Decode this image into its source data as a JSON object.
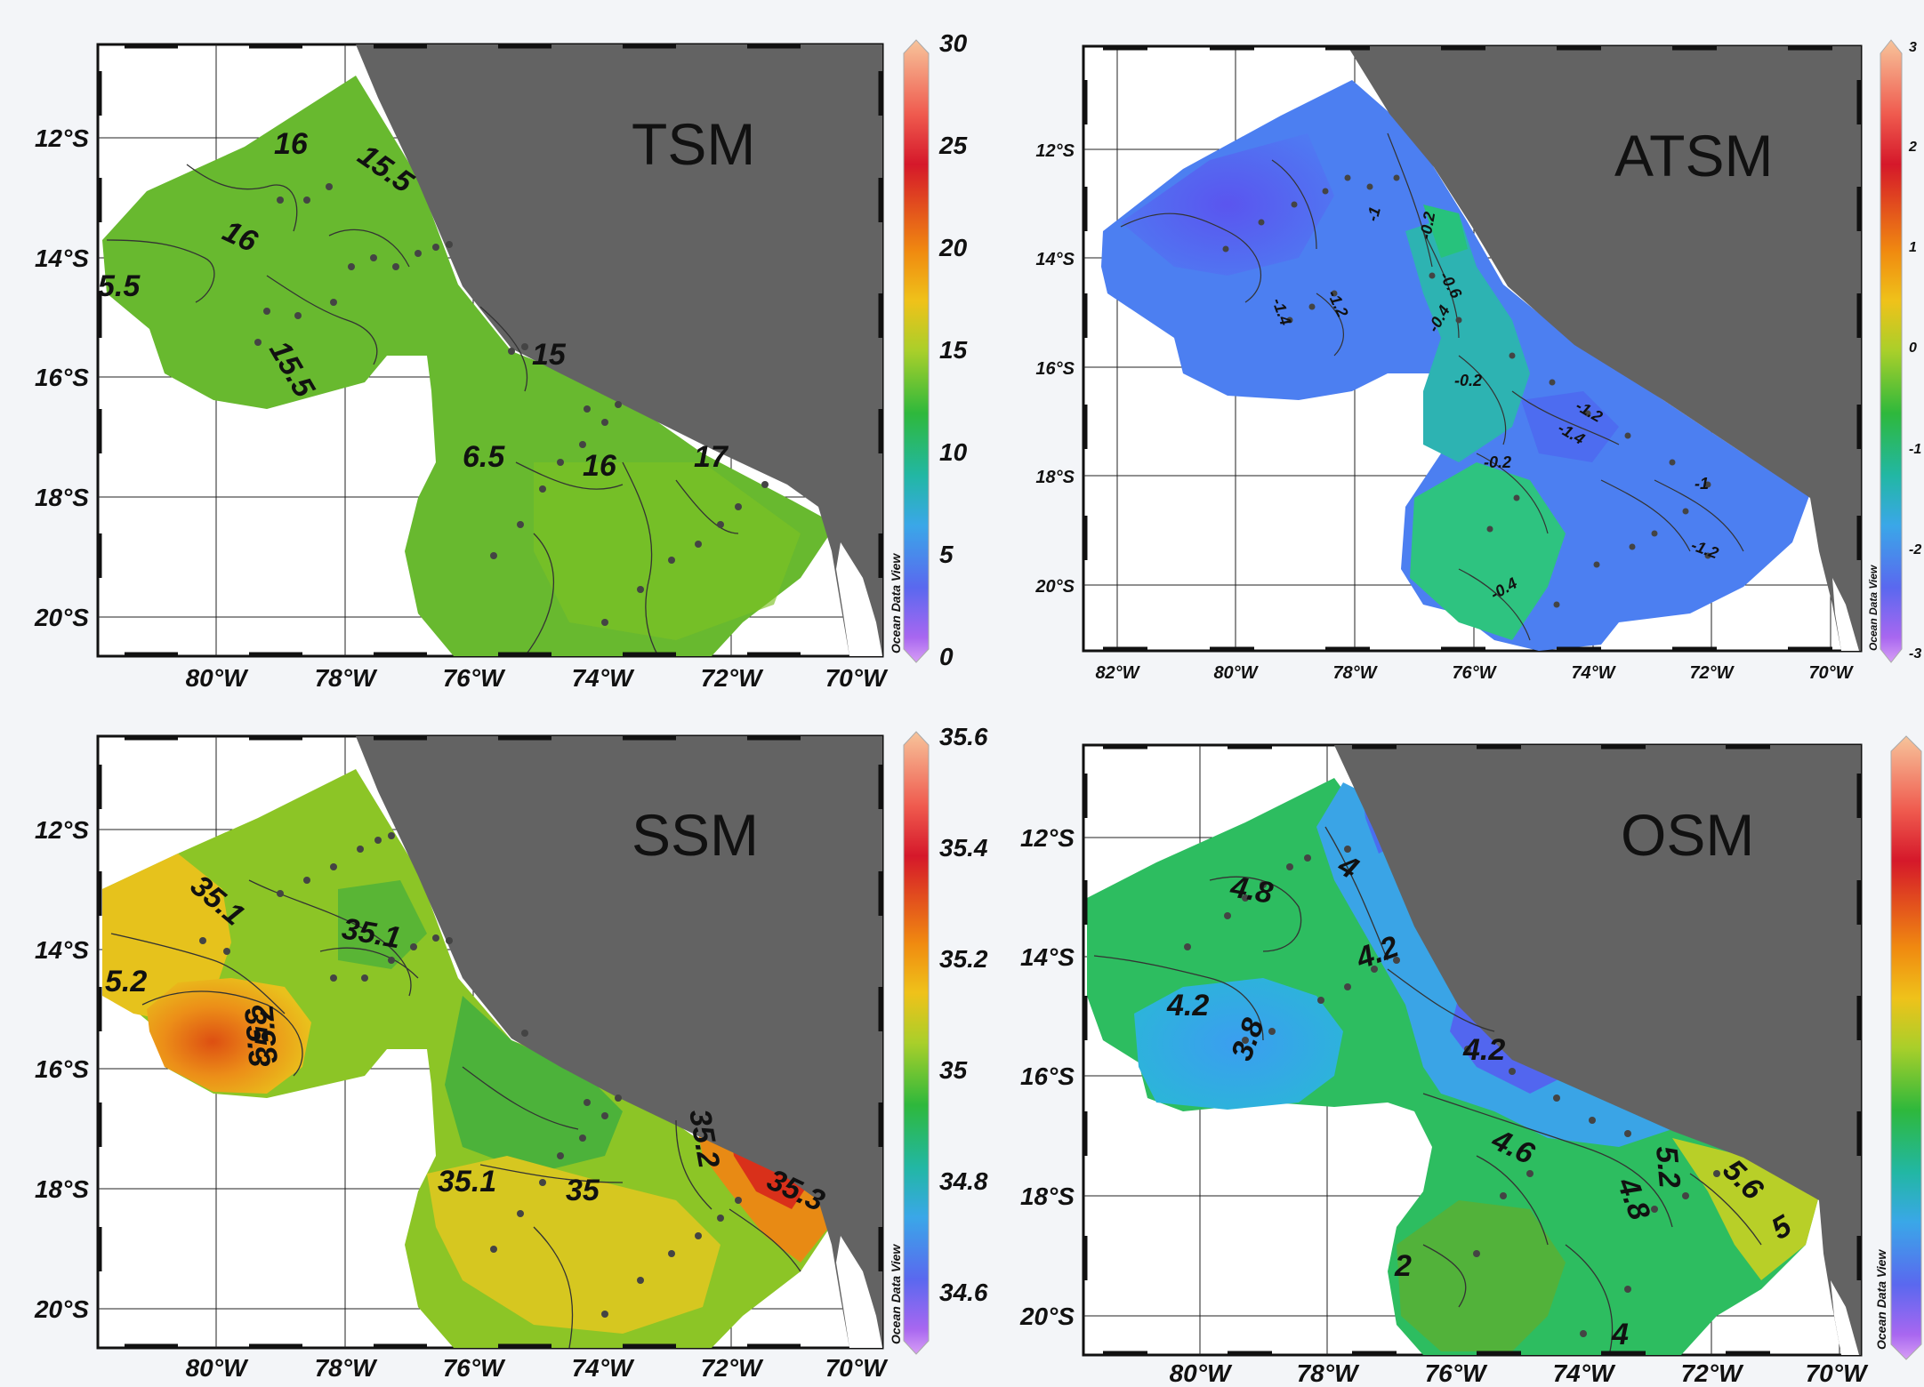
{
  "watermark": "Ocean Data View",
  "panels": [
    {
      "id": "tsm",
      "title": "TSM",
      "lon_labels": [
        "80°W",
        "78°W",
        "76°W",
        "74°W",
        "72°W",
        "70°W"
      ],
      "lat_labels": [
        "12°S",
        "14°S",
        "16°S",
        "18°S",
        "20°S"
      ],
      "colorbar_ticks": [
        "30",
        "25",
        "20",
        "15",
        "10",
        "5",
        "0"
      ],
      "contour_labels": [
        "16",
        "15.5",
        "16",
        "5.5",
        "15.5",
        "15",
        "6.5",
        "16",
        "17"
      ],
      "fill_colors": [
        "#63b531",
        "#6dbd2c",
        "#7cc223",
        "#58ad38"
      ]
    },
    {
      "id": "atsm",
      "title": "ATSM",
      "lon_labels": [
        "82°W",
        "80°W",
        "78°W",
        "76°W",
        "74°W",
        "72°W",
        "70°W"
      ],
      "lat_labels": [
        "12°S",
        "14°S",
        "16°S",
        "18°S",
        "20°S"
      ],
      "colorbar_ticks": [
        "3",
        "2",
        "1",
        "0",
        "-1",
        "-2",
        "-3"
      ],
      "contour_labels": [
        "-1.4",
        "-1.2",
        "-1",
        "-0.2",
        "-0.6",
        "-0.4",
        "-0.2",
        "-1.2",
        "-1.4",
        "-0.2",
        "-1",
        "-1.2",
        "-0.4"
      ],
      "fill_colors": [
        "#4f6cf2",
        "#4a88f0",
        "#2fb0b6",
        "#2ec27c"
      ]
    },
    {
      "id": "ssm",
      "title": "SSM",
      "lon_labels": [
        "80°W",
        "78°W",
        "76°W",
        "74°W",
        "72°W",
        "70°W"
      ],
      "lat_labels": [
        "12°S",
        "14°S",
        "16°S",
        "18°S",
        "20°S"
      ],
      "colorbar_ticks": [
        "35.6",
        "35.4",
        "35.2",
        "35",
        "34.8",
        "34.6"
      ],
      "contour_labels": [
        "35.1",
        "35.1",
        "5.2",
        "35.3",
        "35.2",
        "35.1",
        "35",
        "35.2",
        "35.3"
      ],
      "fill_colors": [
        "#b8d21e",
        "#79c228",
        "#e8a51b",
        "#de6015",
        "#48b33a"
      ]
    },
    {
      "id": "osm",
      "title": "OSM",
      "lon_labels": [
        "80°W",
        "78°W",
        "76°W",
        "74°W",
        "72°W",
        "70°W"
      ],
      "lat_labels": [
        "12°S",
        "14°S",
        "16°S",
        "18°S",
        "20°S"
      ],
      "colorbar_ticks": [],
      "contour_labels": [
        "4.8",
        "4",
        "4.2",
        "4.2",
        "3.8",
        "4.2",
        "4.6",
        "5.2",
        "4.8",
        "5.6",
        "5",
        "2",
        "4"
      ],
      "fill_colors": [
        "#2cbf5a",
        "#36a6e8",
        "#4a7ff0",
        "#57b23a",
        "#a8cc2a"
      ]
    }
  ]
}
